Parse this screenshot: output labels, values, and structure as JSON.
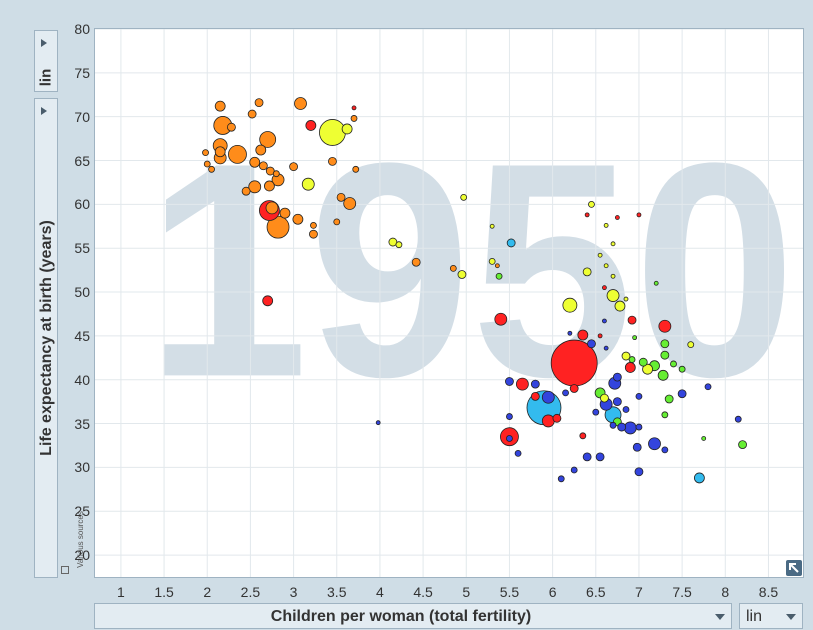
{
  "y_axis": {
    "scale": "lin",
    "label": "Life expectancy at birth (years)"
  },
  "x_axis": {
    "scale": "lin",
    "label": "Children per woman (total fertility)"
  },
  "source_note": "Various sources",
  "icons": {
    "y_scale_toggle": "triangle-right-icon",
    "x_dropdown": "chevron-down-icon",
    "corner": "expand-icon"
  },
  "chart_data": {
    "type": "scatter",
    "watermark": "1950",
    "xlabel": "Children per woman (total fertility)",
    "ylabel": "Life expectancy at birth (years)",
    "xlim": [
      0.7,
      8.9
    ],
    "ylim": [
      17.5,
      80
    ],
    "xticks": [
      1,
      1.5,
      2,
      2.5,
      3,
      3.5,
      4,
      4.5,
      5,
      5.5,
      6,
      6.5,
      7,
      7.5,
      8,
      8.5
    ],
    "yticks": [
      20,
      25,
      30,
      35,
      40,
      45,
      50,
      55,
      60,
      65,
      70,
      75,
      80
    ],
    "grid": true,
    "colors": {
      "orange": "#ff8c1a",
      "red": "#ff2222",
      "yellow": "#eeff33",
      "green": "#66ee33",
      "blue": "#3344dd",
      "cyan": "#33bbee"
    },
    "points": [
      {
        "x": 2.15,
        "y": 71.2,
        "s": 5,
        "c": "orange"
      },
      {
        "x": 2.6,
        "y": 71.6,
        "s": 4,
        "c": "orange"
      },
      {
        "x": 3.08,
        "y": 71.5,
        "s": 6,
        "c": "orange"
      },
      {
        "x": 2.52,
        "y": 70.3,
        "s": 4,
        "c": "orange"
      },
      {
        "x": 2.18,
        "y": 69.0,
        "s": 9,
        "c": "orange"
      },
      {
        "x": 2.28,
        "y": 68.8,
        "s": 4,
        "c": "orange"
      },
      {
        "x": 3.2,
        "y": 69.0,
        "s": 5,
        "c": "red"
      },
      {
        "x": 3.45,
        "y": 68.2,
        "s": 13,
        "c": "yellow"
      },
      {
        "x": 3.62,
        "y": 68.6,
        "s": 5,
        "c": "yellow"
      },
      {
        "x": 3.7,
        "y": 69.8,
        "s": 3,
        "c": "orange"
      },
      {
        "x": 3.7,
        "y": 71.0,
        "s": 2,
        "c": "red"
      },
      {
        "x": 2.15,
        "y": 66.7,
        "s": 7,
        "c": "orange"
      },
      {
        "x": 2.7,
        "y": 67.4,
        "s": 8,
        "c": "orange"
      },
      {
        "x": 2.62,
        "y": 66.2,
        "s": 5,
        "c": "orange"
      },
      {
        "x": 2.15,
        "y": 66.0,
        "s": 5,
        "c": "orange"
      },
      {
        "x": 1.98,
        "y": 65.9,
        "s": 3,
        "c": "orange"
      },
      {
        "x": 2.35,
        "y": 65.7,
        "s": 9,
        "c": "orange"
      },
      {
        "x": 2.15,
        "y": 65.3,
        "s": 6,
        "c": "orange"
      },
      {
        "x": 2.55,
        "y": 64.8,
        "s": 5,
        "c": "orange"
      },
      {
        "x": 2.0,
        "y": 64.6,
        "s": 3,
        "c": "orange"
      },
      {
        "x": 2.65,
        "y": 64.4,
        "s": 4,
        "c": "orange"
      },
      {
        "x": 2.05,
        "y": 64.0,
        "s": 3,
        "c": "orange"
      },
      {
        "x": 2.73,
        "y": 63.8,
        "s": 4,
        "c": "orange"
      },
      {
        "x": 3.0,
        "y": 64.3,
        "s": 4,
        "c": "orange"
      },
      {
        "x": 3.45,
        "y": 64.9,
        "s": 4,
        "c": "orange"
      },
      {
        "x": 3.72,
        "y": 64.0,
        "s": 3,
        "c": "orange"
      },
      {
        "x": 2.8,
        "y": 63.5,
        "s": 3,
        "c": "orange"
      },
      {
        "x": 2.82,
        "y": 62.8,
        "s": 6,
        "c": "orange"
      },
      {
        "x": 2.72,
        "y": 62.1,
        "s": 5,
        "c": "orange"
      },
      {
        "x": 2.55,
        "y": 62.0,
        "s": 6,
        "c": "orange"
      },
      {
        "x": 2.45,
        "y": 61.5,
        "s": 4,
        "c": "orange"
      },
      {
        "x": 3.17,
        "y": 62.3,
        "s": 6,
        "c": "yellow"
      },
      {
        "x": 3.55,
        "y": 60.8,
        "s": 4,
        "c": "orange"
      },
      {
        "x": 3.65,
        "y": 60.1,
        "s": 6,
        "c": "orange"
      },
      {
        "x": 2.75,
        "y": 59.6,
        "s": 6,
        "c": "orange"
      },
      {
        "x": 2.72,
        "y": 59.3,
        "s": 10,
        "c": "red"
      },
      {
        "x": 2.9,
        "y": 59.0,
        "s": 5,
        "c": "orange"
      },
      {
        "x": 3.05,
        "y": 58.3,
        "s": 5,
        "c": "orange"
      },
      {
        "x": 2.82,
        "y": 57.4,
        "s": 11,
        "c": "orange"
      },
      {
        "x": 3.23,
        "y": 57.6,
        "s": 3,
        "c": "orange"
      },
      {
        "x": 3.23,
        "y": 56.6,
        "s": 4,
        "c": "orange"
      },
      {
        "x": 3.5,
        "y": 58.0,
        "s": 3,
        "c": "orange"
      },
      {
        "x": 4.15,
        "y": 55.7,
        "s": 4,
        "c": "yellow"
      },
      {
        "x": 4.22,
        "y": 55.4,
        "s": 3,
        "c": "yellow"
      },
      {
        "x": 4.42,
        "y": 53.4,
        "s": 4,
        "c": "orange"
      },
      {
        "x": 4.85,
        "y": 52.7,
        "s": 3,
        "c": "orange"
      },
      {
        "x": 4.95,
        "y": 52.0,
        "s": 4,
        "c": "yellow"
      },
      {
        "x": 4.97,
        "y": 60.8,
        "s": 3,
        "c": "yellow"
      },
      {
        "x": 5.3,
        "y": 57.5,
        "s": 2,
        "c": "yellow"
      },
      {
        "x": 5.36,
        "y": 53.0,
        "s": 2,
        "c": "orange"
      },
      {
        "x": 5.38,
        "y": 51.8,
        "s": 3,
        "c": "green"
      },
      {
        "x": 5.4,
        "y": 46.9,
        "s": 6,
        "c": "red"
      },
      {
        "x": 5.52,
        "y": 55.6,
        "s": 4,
        "c": "cyan"
      },
      {
        "x": 5.3,
        "y": 53.5,
        "s": 3,
        "c": "yellow"
      },
      {
        "x": 2.7,
        "y": 49.0,
        "s": 5,
        "c": "red"
      },
      {
        "x": 3.98,
        "y": 35.1,
        "s": 2,
        "c": "blue"
      },
      {
        "x": 6.45,
        "y": 60.0,
        "s": 3,
        "c": "yellow"
      },
      {
        "x": 6.75,
        "y": 58.5,
        "s": 2,
        "c": "red"
      },
      {
        "x": 6.62,
        "y": 57.6,
        "s": 2,
        "c": "yellow"
      },
      {
        "x": 6.4,
        "y": 58.8,
        "s": 2,
        "c": "red"
      },
      {
        "x": 7.0,
        "y": 58.8,
        "s": 2,
        "c": "red"
      },
      {
        "x": 6.7,
        "y": 55.5,
        "s": 2,
        "c": "yellow"
      },
      {
        "x": 6.55,
        "y": 54.2,
        "s": 2,
        "c": "yellow"
      },
      {
        "x": 6.62,
        "y": 53.0,
        "s": 2,
        "c": "yellow"
      },
      {
        "x": 6.4,
        "y": 52.3,
        "s": 4,
        "c": "yellow"
      },
      {
        "x": 6.7,
        "y": 51.8,
        "s": 2,
        "c": "yellow"
      },
      {
        "x": 7.2,
        "y": 51.0,
        "s": 2,
        "c": "green"
      },
      {
        "x": 6.6,
        "y": 50.5,
        "s": 2,
        "c": "red"
      },
      {
        "x": 6.7,
        "y": 49.6,
        "s": 6,
        "c": "yellow"
      },
      {
        "x": 6.85,
        "y": 49.2,
        "s": 2,
        "c": "yellow"
      },
      {
        "x": 6.2,
        "y": 48.5,
        "s": 7,
        "c": "yellow"
      },
      {
        "x": 6.78,
        "y": 48.4,
        "s": 5,
        "c": "yellow"
      },
      {
        "x": 6.92,
        "y": 46.8,
        "s": 4,
        "c": "red"
      },
      {
        "x": 6.6,
        "y": 46.7,
        "s": 2,
        "c": "blue"
      },
      {
        "x": 7.3,
        "y": 46.1,
        "s": 6,
        "c": "red"
      },
      {
        "x": 6.2,
        "y": 45.3,
        "s": 2,
        "c": "blue"
      },
      {
        "x": 6.35,
        "y": 45.1,
        "s": 5,
        "c": "red"
      },
      {
        "x": 6.55,
        "y": 45.0,
        "s": 2,
        "c": "red"
      },
      {
        "x": 6.95,
        "y": 44.8,
        "s": 2,
        "c": "green"
      },
      {
        "x": 6.45,
        "y": 44.1,
        "s": 4,
        "c": "blue"
      },
      {
        "x": 7.3,
        "y": 44.1,
        "s": 4,
        "c": "green"
      },
      {
        "x": 7.6,
        "y": 44.0,
        "s": 3,
        "c": "yellow"
      },
      {
        "x": 6.62,
        "y": 43.6,
        "s": 2,
        "c": "blue"
      },
      {
        "x": 7.3,
        "y": 42.8,
        "s": 4,
        "c": "green"
      },
      {
        "x": 6.85,
        "y": 42.7,
        "s": 4,
        "c": "yellow"
      },
      {
        "x": 6.92,
        "y": 42.3,
        "s": 3,
        "c": "green"
      },
      {
        "x": 7.05,
        "y": 42.0,
        "s": 4,
        "c": "green"
      },
      {
        "x": 7.18,
        "y": 41.6,
        "s": 5,
        "c": "green"
      },
      {
        "x": 7.4,
        "y": 41.8,
        "s": 3,
        "c": "green"
      },
      {
        "x": 6.25,
        "y": 41.9,
        "s": 23,
        "c": "red"
      },
      {
        "x": 6.9,
        "y": 41.4,
        "s": 5,
        "c": "red"
      },
      {
        "x": 7.1,
        "y": 41.2,
        "s": 5,
        "c": "yellow"
      },
      {
        "x": 7.28,
        "y": 40.5,
        "s": 5,
        "c": "green"
      },
      {
        "x": 7.5,
        "y": 41.2,
        "s": 3,
        "c": "green"
      },
      {
        "x": 6.75,
        "y": 40.3,
        "s": 4,
        "c": "blue"
      },
      {
        "x": 5.5,
        "y": 39.8,
        "s": 4,
        "c": "blue"
      },
      {
        "x": 5.65,
        "y": 39.5,
        "s": 6,
        "c": "red"
      },
      {
        "x": 5.8,
        "y": 39.5,
        "s": 4,
        "c": "blue"
      },
      {
        "x": 6.72,
        "y": 39.6,
        "s": 6,
        "c": "blue"
      },
      {
        "x": 6.25,
        "y": 39.0,
        "s": 4,
        "c": "red"
      },
      {
        "x": 7.8,
        "y": 39.2,
        "s": 3,
        "c": "blue"
      },
      {
        "x": 7.5,
        "y": 38.4,
        "s": 4,
        "c": "blue"
      },
      {
        "x": 5.8,
        "y": 38.1,
        "s": 4,
        "c": "red"
      },
      {
        "x": 5.95,
        "y": 38.0,
        "s": 6,
        "c": "blue"
      },
      {
        "x": 6.15,
        "y": 38.5,
        "s": 3,
        "c": "blue"
      },
      {
        "x": 6.55,
        "y": 38.5,
        "s": 5,
        "c": "green"
      },
      {
        "x": 6.6,
        "y": 37.9,
        "s": 4,
        "c": "yellow"
      },
      {
        "x": 6.62,
        "y": 37.2,
        "s": 6,
        "c": "blue"
      },
      {
        "x": 6.75,
        "y": 37.5,
        "s": 4,
        "c": "blue"
      },
      {
        "x": 7.0,
        "y": 38.1,
        "s": 3,
        "c": "blue"
      },
      {
        "x": 7.35,
        "y": 37.8,
        "s": 4,
        "c": "green"
      },
      {
        "x": 5.9,
        "y": 36.8,
        "s": 17,
        "c": "cyan"
      },
      {
        "x": 6.5,
        "y": 36.3,
        "s": 3,
        "c": "blue"
      },
      {
        "x": 6.7,
        "y": 36.0,
        "s": 8,
        "c": "cyan"
      },
      {
        "x": 6.85,
        "y": 36.6,
        "s": 3,
        "c": "blue"
      },
      {
        "x": 7.3,
        "y": 36.0,
        "s": 3,
        "c": "green"
      },
      {
        "x": 8.15,
        "y": 35.5,
        "s": 3,
        "c": "blue"
      },
      {
        "x": 5.5,
        "y": 35.8,
        "s": 3,
        "c": "blue"
      },
      {
        "x": 5.95,
        "y": 35.3,
        "s": 6,
        "c": "red"
      },
      {
        "x": 6.05,
        "y": 35.6,
        "s": 4,
        "c": "red"
      },
      {
        "x": 6.75,
        "y": 35.2,
        "s": 4,
        "c": "green"
      },
      {
        "x": 6.8,
        "y": 34.6,
        "s": 4,
        "c": "blue"
      },
      {
        "x": 6.9,
        "y": 34.5,
        "s": 6,
        "c": "blue"
      },
      {
        "x": 7.0,
        "y": 34.6,
        "s": 3,
        "c": "blue"
      },
      {
        "x": 6.7,
        "y": 34.8,
        "s": 3,
        "c": "blue"
      },
      {
        "x": 5.5,
        "y": 33.5,
        "s": 9,
        "c": "red"
      },
      {
        "x": 5.5,
        "y": 33.3,
        "s": 3,
        "c": "blue"
      },
      {
        "x": 6.35,
        "y": 33.6,
        "s": 3,
        "c": "red"
      },
      {
        "x": 7.75,
        "y": 33.3,
        "s": 2,
        "c": "green"
      },
      {
        "x": 7.18,
        "y": 32.7,
        "s": 6,
        "c": "blue"
      },
      {
        "x": 6.98,
        "y": 32.3,
        "s": 4,
        "c": "blue"
      },
      {
        "x": 7.3,
        "y": 32.0,
        "s": 3,
        "c": "blue"
      },
      {
        "x": 8.2,
        "y": 32.6,
        "s": 4,
        "c": "green"
      },
      {
        "x": 5.6,
        "y": 31.6,
        "s": 3,
        "c": "blue"
      },
      {
        "x": 6.4,
        "y": 31.2,
        "s": 4,
        "c": "blue"
      },
      {
        "x": 6.55,
        "y": 31.2,
        "s": 4,
        "c": "blue"
      },
      {
        "x": 6.25,
        "y": 29.7,
        "s": 3,
        "c": "blue"
      },
      {
        "x": 7.0,
        "y": 29.5,
        "s": 4,
        "c": "blue"
      },
      {
        "x": 6.1,
        "y": 28.7,
        "s": 3,
        "c": "blue"
      },
      {
        "x": 7.7,
        "y": 28.8,
        "s": 5,
        "c": "cyan"
      }
    ]
  }
}
